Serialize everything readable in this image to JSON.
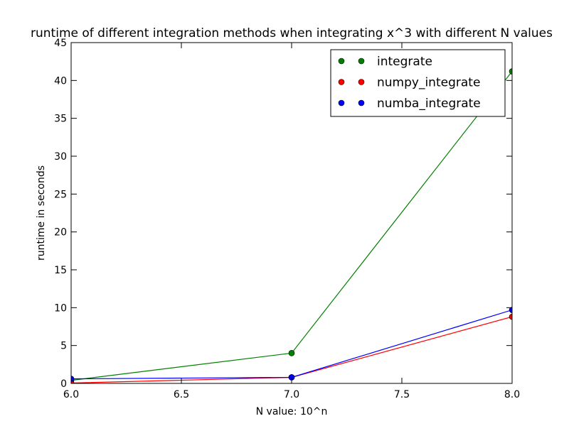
{
  "chart_data": {
    "type": "line",
    "title": "runtime of different integration methods when integrating x^3 with different N values",
    "xlabel": "N value: 10^n",
    "ylabel": "runtime in seconds",
    "xlim": [
      6.0,
      8.0
    ],
    "ylim": [
      0,
      45
    ],
    "x_ticks": [
      "6.0",
      "6.5",
      "7.0",
      "7.5",
      "8.0"
    ],
    "y_ticks": [
      "0",
      "5",
      "10",
      "15",
      "20",
      "25",
      "30",
      "35",
      "40",
      "45"
    ],
    "x": [
      6.0,
      7.0,
      8.0
    ],
    "grid": false,
    "legend_position": "top-right",
    "series": [
      {
        "name": "integrate",
        "color": "#008000",
        "values": [
          0.4,
          4.0,
          41.2
        ]
      },
      {
        "name": "numpy_integrate",
        "color": "#ff0000",
        "values": [
          0.05,
          0.8,
          8.8
        ]
      },
      {
        "name": "numba_integrate",
        "color": "#0000ff",
        "values": [
          0.6,
          0.8,
          9.7
        ]
      }
    ]
  }
}
